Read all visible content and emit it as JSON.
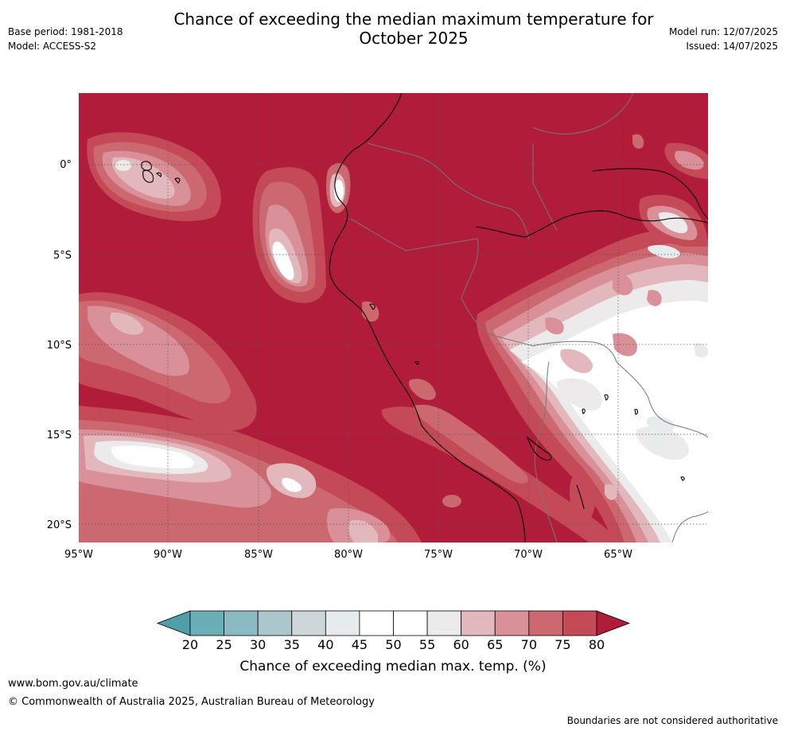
{
  "header": {
    "title_line1": "Chance of exceeding the median maximum temperature for",
    "title_line2": "October 2025",
    "base_period": "Base period: 1981-2018",
    "model": "Model: ACCESS-S2",
    "model_run": "Model run: 12/07/2025",
    "issued": "Issued: 14/07/2025"
  },
  "map": {
    "lat_labels": [
      "0°",
      "5°S",
      "10°S",
      "15°S",
      "20°S"
    ],
    "lon_labels": [
      "95°W",
      "90°W",
      "85°W",
      "80°W",
      "75°W",
      "70°W",
      "65°W"
    ],
    "colors": {
      "c80": "#b01c3a",
      "c75": "#c44a57",
      "c70": "#cc6870",
      "c65": "#d99098",
      "c60": "#e2b8bd",
      "c55": "#eceaeb",
      "c50": "#ffffff",
      "c40": "#e6ecee",
      "c35": "#cdd7d9",
      "coast": "#000000",
      "border": "#777777",
      "grid": "#555555"
    }
  },
  "colorbar": {
    "ticks": [
      "20",
      "25",
      "30",
      "35",
      "40",
      "45",
      "50",
      "55",
      "60",
      "65",
      "70",
      "75",
      "80"
    ],
    "colors": [
      "#6aaeb8",
      "#8cbac4",
      "#abc7cc",
      "#cdd7d9",
      "#e6ecee",
      "#ffffff",
      "#ffffff",
      "#eceaeb",
      "#e2b8bd",
      "#d99098",
      "#cc6870",
      "#c44a57"
    ],
    "low_color": "#4f9faa",
    "high_color": "#b01c3a",
    "label": "Chance of exceeding median max. temp. (%)"
  },
  "footer": {
    "url": "www.bom.gov.au/climate",
    "copyright": "© Commonwealth of Australia 2025, Australian Bureau of Meteorology",
    "disclaimer": "Boundaries are not considered authoritative"
  }
}
